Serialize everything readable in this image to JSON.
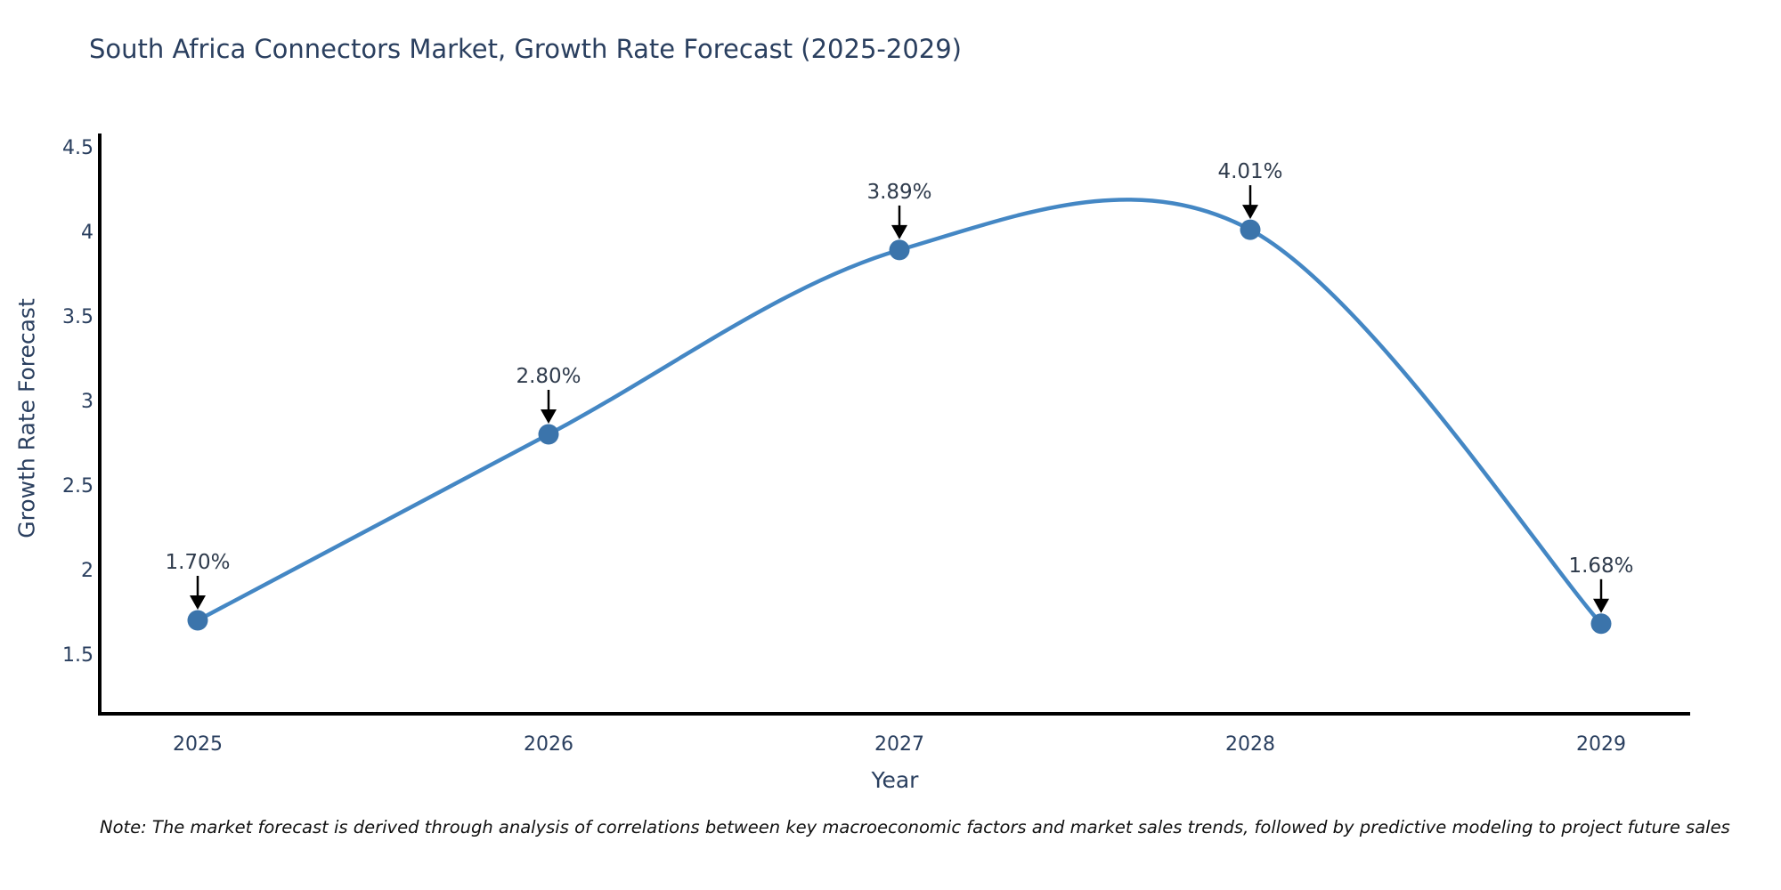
{
  "title": "South Africa Connectors Market, Growth Rate Forecast (2025-2029)",
  "note": "Note: The market forecast is derived through analysis of correlations between key macroeconomic factors and market sales trends, followed by predictive modeling to project future sales",
  "colors": {
    "line": "#4487c4",
    "marker": "#3b74ab",
    "axis": "#000000",
    "text": "#2a3f5f",
    "annotation": "#2f3b4c",
    "arrow": "#000000"
  },
  "chart_data": {
    "type": "line",
    "title": "South Africa Connectors Market, Growth Rate Forecast (2025-2029)",
    "x": [
      2025,
      2026,
      2027,
      2028,
      2029
    ],
    "values": [
      1.7,
      2.8,
      3.89,
      4.01,
      1.68
    ],
    "point_labels": [
      "1.70%",
      "2.80%",
      "3.89%",
      "4.01%",
      "1.68%"
    ],
    "xtick_labels": [
      "2025",
      "2026",
      "2027",
      "2028",
      "2029"
    ],
    "yticks": [
      1.5,
      2,
      2.5,
      3,
      3.5,
      4,
      4.5
    ],
    "ytick_labels": [
      "1.5",
      "2",
      "2.5",
      "3",
      "3.5",
      "4",
      "4.5"
    ],
    "xlabel": "Year",
    "ylabel": "Growth Rate Forecast",
    "ylim": [
      1.17,
      4.58
    ],
    "line_shape": "spline",
    "grid": false,
    "legend": false,
    "annotations_have_arrows": true
  }
}
